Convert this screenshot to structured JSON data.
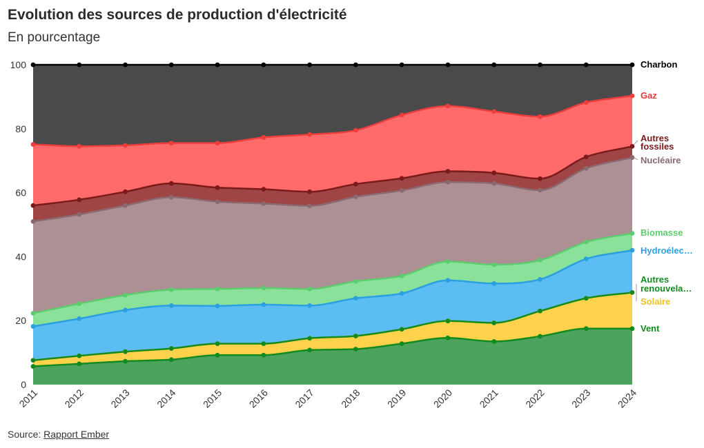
{
  "chart_data": {
    "type": "area",
    "stacked": true,
    "title": "Evolution des sources de production d'électricité",
    "subtitle": "En pourcentage",
    "x": [
      2011,
      2012,
      2013,
      2014,
      2015,
      2016,
      2017,
      2018,
      2019,
      2020,
      2021,
      2022,
      2023,
      2024
    ],
    "ylim": [
      0,
      100
    ],
    "yticks": [
      0,
      20,
      40,
      60,
      80,
      100
    ],
    "grid": false,
    "legend": "direct labels right",
    "series": [
      {
        "name": "Vent",
        "color": "#138a1f",
        "fill": "#4ba35d",
        "cumulative": [
          5.7,
          6.5,
          7.3,
          7.8,
          9.2,
          9.2,
          10.8,
          11.1,
          12.8,
          14.6,
          13.5,
          15.1,
          17.5,
          17.5
        ]
      },
      {
        "name": "Solaire",
        "color": "#f5c22b",
        "fill": "#ffd24c",
        "cumulative": [
          7.6,
          9.0,
          10.3,
          11.3,
          12.8,
          12.8,
          14.5,
          15.2,
          17.3,
          19.9,
          19.3,
          23.0,
          27.0,
          28.8
        ]
      },
      {
        "name": "Autres renouvelables",
        "label": [
          "Autres",
          "renouvela…"
        ],
        "color": "#138a1f",
        "fill": "#1f8f2a",
        "cumulative": [
          7.6,
          9.0,
          10.3,
          11.3,
          12.8,
          12.8,
          14.5,
          15.2,
          17.3,
          19.9,
          19.3,
          23.0,
          27.0,
          28.8
        ]
      },
      {
        "name": "Hydroélectrique",
        "label": [
          "Hydroélec…"
        ],
        "color": "#2b9fe0",
        "fill": "#5bbdf2",
        "cumulative": [
          18.2,
          20.6,
          23.3,
          24.7,
          24.6,
          25.0,
          24.7,
          27.0,
          28.5,
          32.6,
          31.6,
          32.9,
          39.3,
          42.0
        ]
      },
      {
        "name": "Biomasse",
        "color": "#5dcc6f",
        "fill": "#8ae29a",
        "cumulative": [
          22.3,
          25.3,
          28.0,
          29.7,
          29.9,
          30.2,
          29.9,
          32.3,
          34.0,
          38.5,
          37.5,
          38.9,
          44.6,
          47.3
        ]
      },
      {
        "name": "Nucléaire",
        "color": "#8a6a70",
        "fill": "#ad9094",
        "cumulative": [
          51.0,
          53.2,
          56.0,
          58.6,
          57.2,
          56.6,
          55.9,
          58.7,
          60.7,
          63.3,
          62.9,
          60.8,
          67.6,
          71.0
        ]
      },
      {
        "name": "Autres fossiles",
        "label": [
          "Autres",
          "fossiles"
        ],
        "color": "#7a1a1a",
        "fill": "#a04545",
        "cumulative": [
          56.0,
          57.8,
          60.3,
          62.9,
          61.6,
          61.1,
          60.3,
          62.7,
          64.5,
          66.7,
          66.2,
          64.4,
          71.2,
          74.5
        ]
      },
      {
        "name": "Gaz",
        "color": "#ee3d3d",
        "fill": "#ff6b6b",
        "cumulative": [
          75.1,
          74.5,
          74.8,
          75.5,
          75.5,
          77.3,
          78.2,
          79.5,
          84.3,
          87.1,
          85.4,
          83.8,
          88.2,
          90.3
        ]
      },
      {
        "name": "Charbon",
        "color": "#000000",
        "fill": "#4a4a4a",
        "cumulative": [
          100,
          100,
          100,
          100,
          100,
          100,
          100,
          100,
          100,
          100,
          100,
          100,
          100,
          100
        ]
      }
    ]
  },
  "source": {
    "prefix": "Source: ",
    "link_text": "Rapport Ember"
  }
}
